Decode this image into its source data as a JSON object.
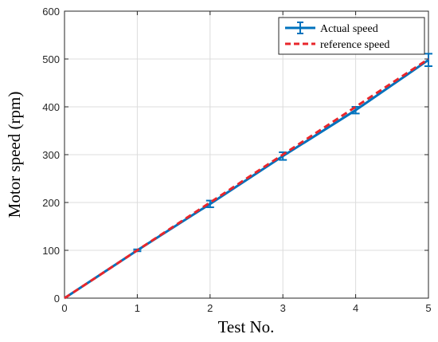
{
  "chart_data": {
    "type": "line",
    "title": "",
    "xlabel": "Test No.",
    "ylabel": "Motor speed (rpm)",
    "xlim": [
      0,
      5
    ],
    "ylim": [
      0,
      600
    ],
    "xticks": [
      0,
      1,
      2,
      3,
      4,
      5
    ],
    "yticks": [
      0,
      100,
      200,
      300,
      400,
      500,
      600
    ],
    "grid": true,
    "legend_position": "top-right",
    "series": [
      {
        "name": "Actual speed",
        "style": "solid line with error bars",
        "color": "#0072BD",
        "x": [
          0,
          1,
          2,
          3,
          4,
          5
        ],
        "values": [
          0,
          100,
          197,
          297,
          393,
          498
        ],
        "error": [
          0,
          2,
          7,
          8,
          7,
          13
        ]
      },
      {
        "name": "reference speed",
        "style": "dashed line",
        "color": "#E8262B",
        "x": [
          0,
          1,
          2,
          3,
          4,
          5
        ],
        "values": [
          0,
          100,
          200,
          300,
          400,
          500
        ]
      }
    ]
  }
}
